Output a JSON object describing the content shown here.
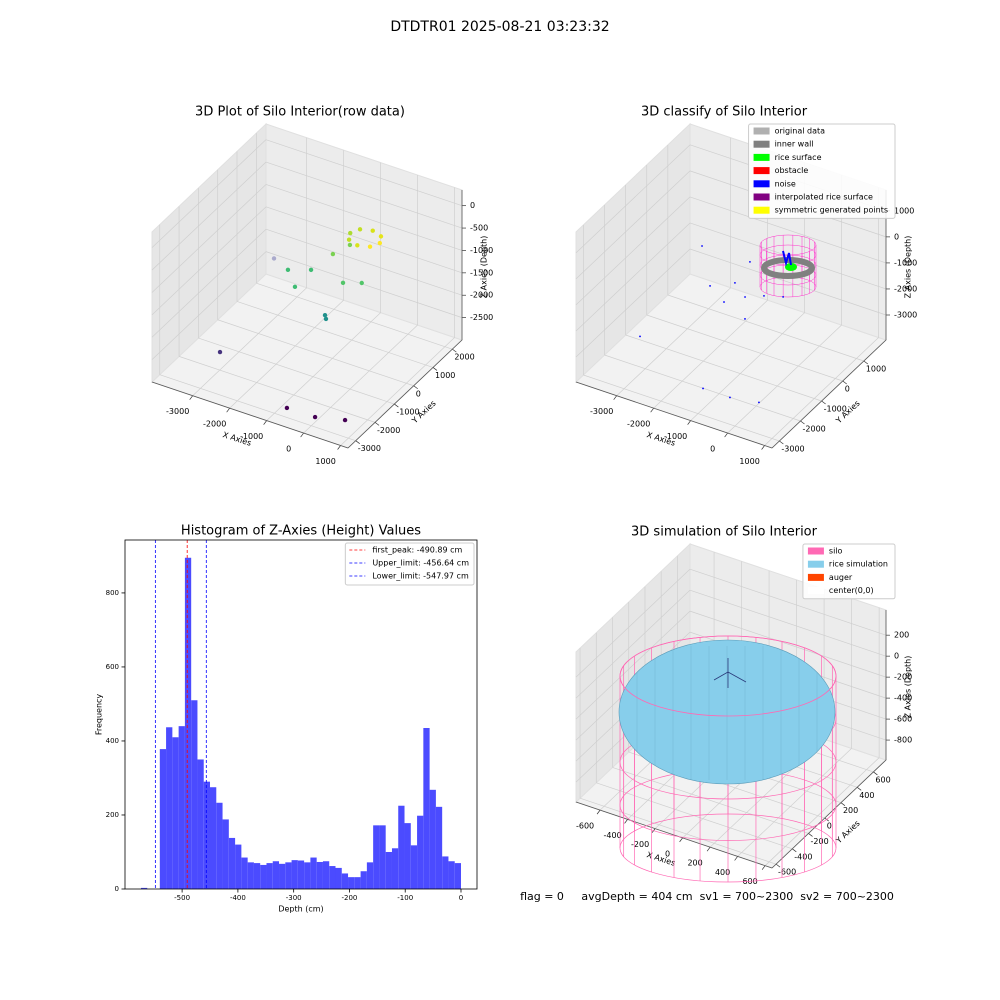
{
  "suptitle": "DTDTR01 2025-08-21 03:23:32",
  "footer": "flag = 0     avgDepth = 404 cm  sv1 = 700~2300  sv2 = 700~2300",
  "chart_data": [
    {
      "type": "scatter3d",
      "title": "3D Plot of Silo Interior(row data)",
      "xlabel": "X Axies",
      "ylabel": "Y Axies",
      "zlabel": "Z Axies (Depth)",
      "xlim": [
        -4100,
        1200
      ],
      "ylim": [
        -3400,
        2500
      ],
      "zlim": [
        -3000,
        350
      ],
      "xticks": [
        -3000,
        -2000,
        -1000,
        0,
        1000
      ],
      "yticks": [
        -3000,
        -2000,
        -1000,
        0,
        1000,
        2000
      ],
      "zticks": [
        0,
        -500,
        -1000,
        -1500,
        -2000,
        -2500
      ],
      "series": [
        {
          "x": [
            -3374,
            -862,
            -109,
            553,
            -1302,
            -1250,
            -1837,
            -2335,
            -1874,
            -963,
            -586,
            -2570,
            -1206,
            -1057,
            -313,
            -430,
            -713,
            -996,
            -1113,
            -996,
            -713,
            -430
          ],
          "y": [
            -1270,
            -2615,
            -2598,
            -2314,
            199,
            150,
            -332,
            258,
            571,
            482,
            730,
            -13,
            423,
            1019,
            1143,
            1426,
            1543,
            1426,
            1143,
            860,
            743,
            860
          ],
          "z": [
            -3000,
            -3000,
            -3000,
            -3000,
            -2200,
            -2250,
            -1500,
            -1500,
            -1500,
            -1500,
            -1500,
            -1200,
            -900,
            -900,
            -700,
            -700,
            -700,
            -700,
            -700,
            -700,
            -700,
            -700
          ],
          "colors": [
            "#46337e",
            "#440154",
            "#440154",
            "#440154",
            "#21918c",
            "#21918c",
            "#3fbc73",
            "#3fbc73",
            "#3fbc73",
            "#52c569",
            "#52c569",
            "#aaaacc",
            "#7ad151",
            "#7ad151",
            "#fde725",
            "#e5e419",
            "#d8e219",
            "#c2df23",
            "#addc30",
            "#c2df23",
            "#d8e219",
            "#fde725"
          ]
        }
      ]
    },
    {
      "type": "scatter3d",
      "title": "3D classify of Silo Interior",
      "xlabel": "X Axies",
      "ylabel": "Y Axies",
      "zlabel": "Z Axies (Depth)",
      "xlim": [
        -4100,
        1200
      ],
      "ylim": [
        -3350,
        2050
      ],
      "zlim": [
        -3960,
        1800
      ],
      "xticks": [
        -3000,
        -2000,
        -1000,
        0,
        1000
      ],
      "yticks": [
        -3000,
        -2000,
        -1000,
        0,
        1000
      ],
      "zticks": [
        1000,
        0,
        -1000,
        -2000,
        -3000
      ],
      "legend": "upper right",
      "series": [
        {
          "name": "original data",
          "color": "#b0b0b0"
        },
        {
          "name": "inner wall",
          "color": "#808080"
        },
        {
          "name": "rice surface",
          "color": "#00ff00"
        },
        {
          "name": "obstacle",
          "color": "#ff0000"
        },
        {
          "name": "noise",
          "color": "#0000ff",
          "x": [
            -3750,
            -1397,
            -671,
            13,
            -2100,
            -1667,
            -1169,
            -1482,
            -1810,
            -3100,
            -708,
            -814,
            -411
          ],
          "y": [
            -931,
            -2068,
            -2065,
            -1889,
            -504,
            -83,
            -477,
            -925,
            878,
            868,
            -1287,
            -202,
            -2
          ],
          "z": [
            -3900,
            -3900,
            -3900,
            -3900,
            -1500,
            -1500,
            -1500,
            -1500,
            -1500,
            -1500,
            -1500,
            -1500,
            -1500
          ]
        },
        {
          "name": "interpolated rice surface",
          "color": "#800080"
        },
        {
          "name": "symmetric generated points",
          "color": "#ffff00"
        }
      ]
    },
    {
      "type": "histogram",
      "title": "Histogram of Z-Axies (Height) Values",
      "xlabel": "Depth (cm)",
      "ylabel": "Frequency",
      "color": "#4b4bff",
      "bins": [
        -573.75,
        -562.5,
        -551.25,
        -540,
        -528.75,
        -517.5,
        -506.25,
        -495,
        -483.75,
        -472.5,
        -461.25,
        -450,
        -438.75,
        -427.5,
        -416.25,
        -405,
        -393.75,
        -382.5,
        -371.25,
        -360,
        -348.75,
        -337.5,
        -326.25,
        -315,
        -303.75,
        -292.5,
        -281.25,
        -270,
        -258.75,
        -247.5,
        -236.25,
        -225,
        -213.75,
        -202.5,
        -191.25,
        -180,
        -168.75,
        -157.5,
        -146.25,
        -135,
        -123.75,
        -112.5,
        -101.25,
        -90,
        -78.75,
        -67.5,
        -56.25,
        -45,
        -33.75,
        -22.5,
        -11.25,
        0
      ],
      "values": [
        3,
        0,
        0,
        378,
        437,
        410,
        440,
        895,
        510,
        350,
        290,
        275,
        233,
        188,
        138,
        120,
        85,
        72,
        70,
        65,
        70,
        75,
        68,
        72,
        78,
        77,
        72,
        85,
        73,
        75,
        62,
        57,
        42,
        32,
        32,
        48,
        72,
        172,
        172,
        100,
        110,
        225,
        178,
        118,
        198,
        435,
        268,
        222,
        88,
        75,
        70
      ],
      "xlim": [
        -602.4,
        28.7
      ],
      "ylim": [
        0,
        943
      ],
      "xticks": [
        -500,
        -400,
        -300,
        -200,
        -100,
        0
      ],
      "yticks": [
        0,
        200,
        400,
        600,
        800
      ],
      "legend": "upper right",
      "lines": [
        {
          "label": "first_peak: -490.89 cm",
          "value": -490.89,
          "color": "#ff0000"
        },
        {
          "label": "Upper_limit: -456.64 cm",
          "value": -456.64,
          "color": "#0000ff"
        },
        {
          "label": "Lower_limit: -547.97 cm",
          "value": -547.97,
          "color": "#0000ff"
        }
      ]
    },
    {
      "type": "scatter3d",
      "title": "3D simulation of Silo Interior",
      "xlabel": "X Axies",
      "ylabel": "Y Axies",
      "zlabel": "Z Axies (Depth)",
      "xlim": [
        -775,
        650
      ],
      "ylim": [
        -650,
        755
      ],
      "zlim": [
        -990,
        440
      ],
      "xticks": [
        -600,
        -400,
        -200,
        0,
        200,
        400,
        600
      ],
      "yticks": [
        -600,
        -400,
        -200,
        0,
        200,
        400,
        600
      ],
      "zticks": [
        200,
        0,
        -200,
        -400,
        -600,
        -800
      ],
      "legend": "upper right",
      "series": [
        {
          "name": "silo",
          "color": "#ff69b4"
        },
        {
          "name": "rice simulation",
          "color": "#87ceeb"
        },
        {
          "name": "auger",
          "color": "#ff4500"
        },
        {
          "name": "center(0,0)",
          "color": "#ffffff"
        }
      ]
    }
  ]
}
